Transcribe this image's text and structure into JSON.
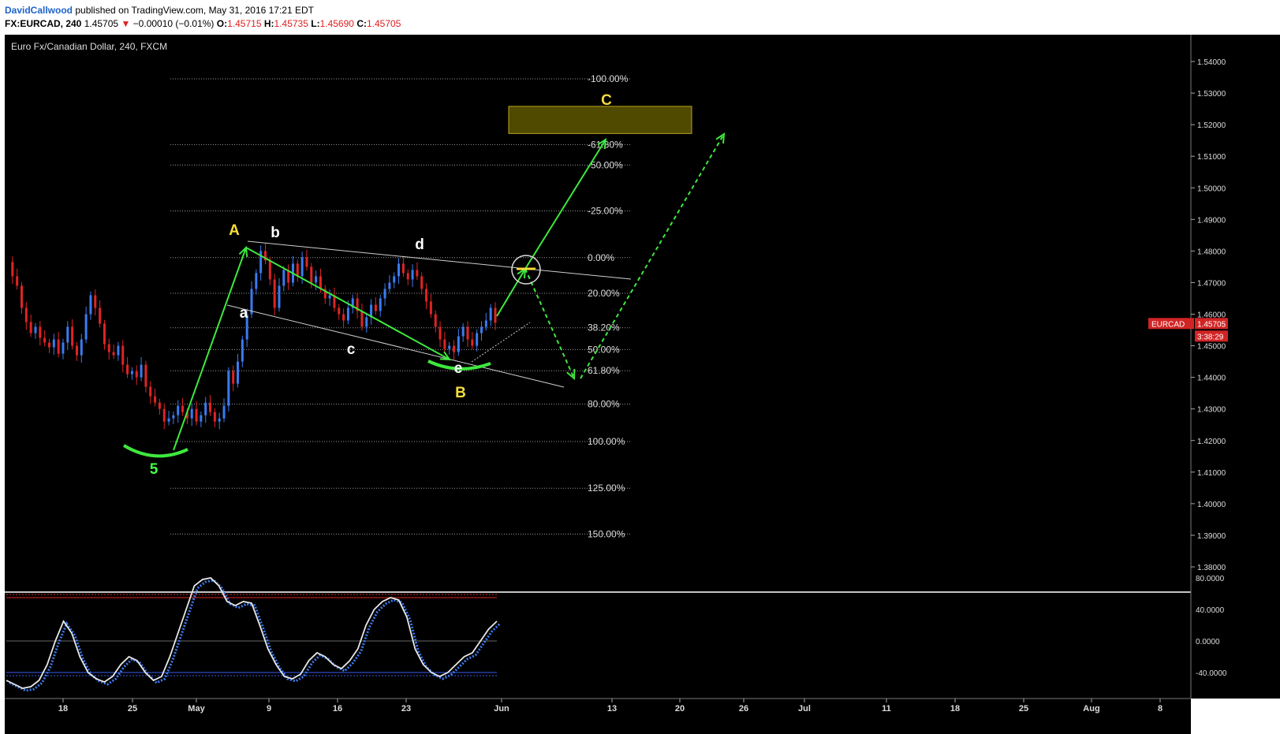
{
  "header": {
    "author": "DavidCallwood",
    "published": "published on TradingView.com, May 31, 2016 17:21 EDT",
    "symbol": "FX:EURCAD, 240",
    "last": "1.45705",
    "change_arrow": "▼",
    "change": "−0.00010 (−0.01%)",
    "o_label": "O:",
    "o": "1.45715",
    "h_label": "H:",
    "h": "1.45735",
    "l_label": "L:",
    "l": "1.45690",
    "c_label": "C:",
    "c": "1.45705"
  },
  "chart_data": {
    "type": "candlestick",
    "title": "Euro Fx/Canadian Dollar, 240, FXCM",
    "ylim": [
      1.373,
      1.548
    ],
    "y_ticks": [
      "1.54000",
      "1.53000",
      "1.52000",
      "1.51000",
      "1.50000",
      "1.49000",
      "1.48000",
      "1.47000",
      "1.46000",
      "1.45000",
      "1.44000",
      "1.43000",
      "1.42000",
      "1.41000",
      "1.40000",
      "1.39000",
      "1.38000"
    ],
    "x_ticks": [
      "18",
      "25",
      "May",
      "9",
      "16",
      "23",
      "Jun",
      "13",
      "20",
      "26",
      "Jul",
      "11",
      "18",
      "25",
      "Aug",
      "8"
    ],
    "price_tag": {
      "symbol": "EURCAD",
      "value": "1.45705",
      "countdown": "3:38:29"
    },
    "fib_levels": [
      {
        "label": "-100.00%",
        "value": 1.5345
      },
      {
        "label": "-61.80%",
        "value": 1.5137
      },
      {
        "label": "-50.00%",
        "value": 1.5072
      },
      {
        "label": "-25.00%",
        "value": 1.4927
      },
      {
        "label": "0.00%",
        "value": 1.4779
      },
      {
        "label": "20.00%",
        "value": 1.4666
      },
      {
        "label": "38.20%",
        "value": 1.4557
      },
      {
        "label": "50.00%",
        "value": 1.4488
      },
      {
        "label": "61.80%",
        "value": 1.4421
      },
      {
        "label": "80.00%",
        "value": 1.4315
      },
      {
        "label": "100.00%",
        "value": 1.4197
      },
      {
        "label": "125.00%",
        "value": 1.4049
      },
      {
        "label": "150.00%",
        "value": 1.3904
      }
    ],
    "wave_labels": [
      {
        "text": "A",
        "color": "#f5dd3b"
      },
      {
        "text": "b",
        "color": "#ffffff"
      },
      {
        "text": "d",
        "color": "#ffffff"
      },
      {
        "text": "a",
        "color": "#ffffff"
      },
      {
        "text": "c",
        "color": "#ffffff"
      },
      {
        "text": "e",
        "color": "#ffffff"
      },
      {
        "text": "B",
        "color": "#f5dd3b"
      },
      {
        "text": "C",
        "color": "#f5dd3b"
      },
      {
        "text": "5",
        "color": "#44ff44"
      }
    ],
    "target_zone": {
      "low": 1.5172,
      "high": 1.5258,
      "color": "#6b6200"
    },
    "price_path": [
      1.4765,
      1.472,
      1.469,
      1.462,
      1.4575,
      1.454,
      1.456,
      1.4525,
      1.451,
      1.4495,
      1.452,
      1.4475,
      1.451,
      1.456,
      1.45,
      1.447,
      1.452,
      1.46,
      1.466,
      1.462,
      1.457,
      1.4505,
      1.448,
      1.447,
      1.45,
      1.444,
      1.441,
      1.442,
      1.44,
      1.444,
      1.437,
      1.434,
      1.432,
      1.43,
      1.426,
      1.427,
      1.428,
      1.431,
      1.429,
      1.427,
      1.43,
      1.426,
      1.428,
      1.432,
      1.429,
      1.426,
      1.427,
      1.431,
      1.442,
      1.438,
      1.445,
      1.452,
      1.46,
      1.468,
      1.473,
      1.48,
      1.477,
      1.471,
      1.462,
      1.469,
      1.474,
      1.47,
      1.476,
      1.472,
      1.478,
      1.475,
      1.47,
      1.472,
      1.468,
      1.465,
      1.466,
      1.462,
      1.46,
      1.458,
      1.462,
      1.465,
      1.461,
      1.456,
      1.459,
      1.463,
      1.461,
      1.465,
      1.468,
      1.47,
      1.472,
      1.476,
      1.473,
      1.471,
      1.474,
      1.472,
      1.468,
      1.464,
      1.46,
      1.456,
      1.452,
      1.449,
      1.45,
      1.448,
      1.453,
      1.456,
      1.452,
      1.45,
      1.454,
      1.456,
      1.458,
      1.462,
      1.4573
    ],
    "oscillator": {
      "ylim": [
        -60,
        85
      ],
      "y_ticks": [
        "80.0000",
        "40.0000",
        "0.0000",
        "-40.0000"
      ],
      "upper_band": 40,
      "lower_band": -40,
      "values": [
        -50,
        -55,
        -60,
        -58,
        -50,
        -30,
        0,
        25,
        10,
        -20,
        -40,
        -48,
        -52,
        -45,
        -30,
        -20,
        -25,
        -40,
        -50,
        -45,
        -20,
        10,
        40,
        70,
        78,
        80,
        70,
        50,
        45,
        50,
        48,
        20,
        -10,
        -30,
        -45,
        -48,
        -42,
        -25,
        -15,
        -20,
        -30,
        -35,
        -25,
        -10,
        20,
        40,
        50,
        55,
        52,
        30,
        -10,
        -30,
        -40,
        -45,
        -40,
        -30,
        -20,
        -15,
        0,
        15,
        25
      ]
    }
  }
}
